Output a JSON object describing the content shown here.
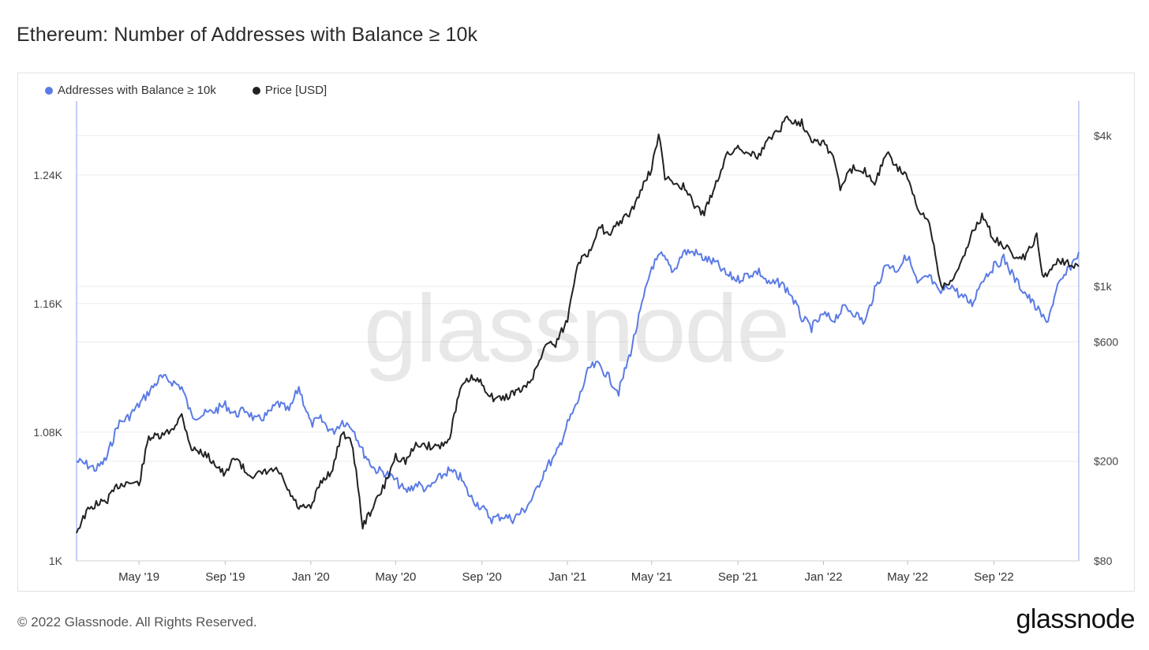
{
  "title": "Ethereum: Number of Addresses with Balance ≥ 10k",
  "footer": "© 2022 Glassnode. All Rights Reserved.",
  "brand": "glassnode",
  "watermark": "glassnode",
  "colors": {
    "addresses": "#5b7be5",
    "price": "#222222",
    "grid": "#ececec"
  },
  "chart_data": {
    "type": "line",
    "title": "Ethereum: Number of Addresses with Balance ≥ 10k",
    "legend_position": "top-left",
    "grid": true,
    "x_ticks": [
      "May '19",
      "Sep '19",
      "Jan '20",
      "May '20",
      "Sep '20",
      "Jan '21",
      "May '21",
      "Sep '21",
      "Jan '22",
      "May '22",
      "Sep '22"
    ],
    "x_range": [
      "2019-02-01",
      "2022-12-31"
    ],
    "y_left": {
      "ticks": [
        "1K",
        "1.08K",
        "1.16K",
        "1.24K"
      ],
      "tick_values": [
        1000,
        1080,
        1160,
        1240
      ],
      "range": [
        1000,
        1286
      ]
    },
    "y_right": {
      "scale": "log",
      "ticks": [
        "$80",
        "$200",
        "$600",
        "$1k",
        "$4k"
      ],
      "tick_values": [
        80,
        200,
        600,
        1000,
        4000
      ],
      "range": [
        80,
        5500
      ]
    },
    "series": [
      {
        "name": "Addresses with Balance ≥ 10k",
        "axis": "left",
        "points": [
          [
            "2019-02-01",
            1062
          ],
          [
            "2019-02-15",
            1060
          ],
          [
            "2019-03-01",
            1057
          ],
          [
            "2019-03-15",
            1063
          ],
          [
            "2019-04-01",
            1085
          ],
          [
            "2019-04-15",
            1089
          ],
          [
            "2019-05-01",
            1097
          ],
          [
            "2019-05-15",
            1105
          ],
          [
            "2019-06-01",
            1114
          ],
          [
            "2019-06-15",
            1112
          ],
          [
            "2019-07-01",
            1108
          ],
          [
            "2019-07-15",
            1090
          ],
          [
            "2019-08-01",
            1091
          ],
          [
            "2019-08-15",
            1093
          ],
          [
            "2019-09-01",
            1097
          ],
          [
            "2019-09-15",
            1091
          ],
          [
            "2019-10-01",
            1094
          ],
          [
            "2019-10-15",
            1087
          ],
          [
            "2019-11-01",
            1091
          ],
          [
            "2019-11-15",
            1098
          ],
          [
            "2019-12-01",
            1093
          ],
          [
            "2019-12-15",
            1108
          ],
          [
            "2020-01-01",
            1085
          ],
          [
            "2020-01-15",
            1088
          ],
          [
            "2020-02-01",
            1080
          ],
          [
            "2020-02-15",
            1087
          ],
          [
            "2020-03-01",
            1083
          ],
          [
            "2020-03-15",
            1068
          ],
          [
            "2020-04-01",
            1057
          ],
          [
            "2020-04-15",
            1055
          ],
          [
            "2020-05-01",
            1050
          ],
          [
            "2020-05-15",
            1043
          ],
          [
            "2020-06-01",
            1048
          ],
          [
            "2020-06-15",
            1044
          ],
          [
            "2020-07-01",
            1051
          ],
          [
            "2020-07-15",
            1056
          ],
          [
            "2020-08-01",
            1052
          ],
          [
            "2020-08-15",
            1040
          ],
          [
            "2020-09-01",
            1033
          ],
          [
            "2020-09-15",
            1026
          ],
          [
            "2020-10-01",
            1028
          ],
          [
            "2020-10-15",
            1026
          ],
          [
            "2020-11-01",
            1032
          ],
          [
            "2020-11-15",
            1041
          ],
          [
            "2020-12-01",
            1058
          ],
          [
            "2020-12-15",
            1065
          ],
          [
            "2021-01-01",
            1085
          ],
          [
            "2021-01-15",
            1098
          ],
          [
            "2021-02-01",
            1120
          ],
          [
            "2021-02-15",
            1122
          ],
          [
            "2021-03-01",
            1114
          ],
          [
            "2021-03-15",
            1105
          ],
          [
            "2021-04-01",
            1130
          ],
          [
            "2021-04-15",
            1155
          ],
          [
            "2021-05-01",
            1183
          ],
          [
            "2021-05-15",
            1190
          ],
          [
            "2021-06-01",
            1180
          ],
          [
            "2021-06-15",
            1192
          ],
          [
            "2021-07-01",
            1192
          ],
          [
            "2021-07-15",
            1188
          ],
          [
            "2021-08-01",
            1185
          ],
          [
            "2021-08-15",
            1178
          ],
          [
            "2021-09-01",
            1175
          ],
          [
            "2021-09-15",
            1178
          ],
          [
            "2021-10-01",
            1180
          ],
          [
            "2021-10-15",
            1172
          ],
          [
            "2021-11-01",
            1173
          ],
          [
            "2021-11-15",
            1166
          ],
          [
            "2021-12-01",
            1151
          ],
          [
            "2021-12-15",
            1145
          ],
          [
            "2022-01-01",
            1153
          ],
          [
            "2022-01-15",
            1150
          ],
          [
            "2022-02-01",
            1158
          ],
          [
            "2022-02-15",
            1154
          ],
          [
            "2022-03-01",
            1148
          ],
          [
            "2022-03-15",
            1168
          ],
          [
            "2022-04-01",
            1185
          ],
          [
            "2022-04-15",
            1181
          ],
          [
            "2022-05-01",
            1190
          ],
          [
            "2022-05-15",
            1172
          ],
          [
            "2022-06-01",
            1177
          ],
          [
            "2022-06-15",
            1166
          ],
          [
            "2022-07-01",
            1172
          ],
          [
            "2022-07-15",
            1165
          ],
          [
            "2022-08-01",
            1160
          ],
          [
            "2022-08-15",
            1175
          ],
          [
            "2022-09-01",
            1183
          ],
          [
            "2022-09-15",
            1188
          ],
          [
            "2022-10-01",
            1175
          ],
          [
            "2022-10-15",
            1167
          ],
          [
            "2022-11-01",
            1157
          ],
          [
            "2022-11-15",
            1148
          ],
          [
            "2022-12-01",
            1170
          ],
          [
            "2022-12-15",
            1180
          ],
          [
            "2022-12-31",
            1192
          ]
        ]
      },
      {
        "name": "Price [USD]",
        "axis": "right",
        "points": [
          [
            "2019-02-01",
            105
          ],
          [
            "2019-02-15",
            125
          ],
          [
            "2019-03-01",
            135
          ],
          [
            "2019-03-15",
            138
          ],
          [
            "2019-04-01",
            160
          ],
          [
            "2019-04-15",
            165
          ],
          [
            "2019-05-01",
            162
          ],
          [
            "2019-05-15",
            250
          ],
          [
            "2019-06-01",
            250
          ],
          [
            "2019-06-15",
            265
          ],
          [
            "2019-07-01",
            305
          ],
          [
            "2019-07-15",
            225
          ],
          [
            "2019-08-01",
            215
          ],
          [
            "2019-08-15",
            200
          ],
          [
            "2019-09-01",
            175
          ],
          [
            "2019-09-15",
            210
          ],
          [
            "2019-10-01",
            180
          ],
          [
            "2019-10-15",
            175
          ],
          [
            "2019-11-01",
            182
          ],
          [
            "2019-11-15",
            184
          ],
          [
            "2019-12-01",
            150
          ],
          [
            "2019-12-15",
            130
          ],
          [
            "2020-01-01",
            130
          ],
          [
            "2020-01-15",
            165
          ],
          [
            "2020-02-01",
            185
          ],
          [
            "2020-02-15",
            265
          ],
          [
            "2020-03-01",
            230
          ],
          [
            "2020-03-15",
            110
          ],
          [
            "2020-04-01",
            135
          ],
          [
            "2020-04-15",
            160
          ],
          [
            "2020-05-01",
            210
          ],
          [
            "2020-05-15",
            200
          ],
          [
            "2020-06-01",
            235
          ],
          [
            "2020-06-15",
            230
          ],
          [
            "2020-07-01",
            230
          ],
          [
            "2020-07-15",
            240
          ],
          [
            "2020-08-01",
            385
          ],
          [
            "2020-08-15",
            430
          ],
          [
            "2020-09-01",
            410
          ],
          [
            "2020-09-15",
            360
          ],
          [
            "2020-10-01",
            355
          ],
          [
            "2020-10-15",
            375
          ],
          [
            "2020-11-01",
            390
          ],
          [
            "2020-11-15",
            450
          ],
          [
            "2020-12-01",
            590
          ],
          [
            "2020-12-15",
            590
          ],
          [
            "2021-01-01",
            735
          ],
          [
            "2021-01-15",
            1250
          ],
          [
            "2021-02-01",
            1350
          ],
          [
            "2021-02-15",
            1780
          ],
          [
            "2021-03-01",
            1570
          ],
          [
            "2021-03-15",
            1800
          ],
          [
            "2021-04-01",
            1950
          ],
          [
            "2021-04-15",
            2400
          ],
          [
            "2021-05-01",
            2950
          ],
          [
            "2021-05-11",
            4100
          ],
          [
            "2021-05-20",
            2700
          ],
          [
            "2021-06-01",
            2600
          ],
          [
            "2021-06-15",
            2500
          ],
          [
            "2021-07-01",
            2100
          ],
          [
            "2021-07-15",
            1950
          ],
          [
            "2021-08-01",
            2600
          ],
          [
            "2021-08-15",
            3300
          ],
          [
            "2021-09-01",
            3600
          ],
          [
            "2021-09-15",
            3450
          ],
          [
            "2021-10-01",
            3300
          ],
          [
            "2021-10-15",
            3900
          ],
          [
            "2021-11-01",
            4300
          ],
          [
            "2021-11-10",
            4750
          ],
          [
            "2021-11-15",
            4600
          ],
          [
            "2021-12-01",
            4500
          ],
          [
            "2021-12-15",
            3900
          ],
          [
            "2022-01-01",
            3750
          ],
          [
            "2022-01-15",
            3300
          ],
          [
            "2022-01-25",
            2450
          ],
          [
            "2022-02-01",
            2700
          ],
          [
            "2022-02-15",
            3000
          ],
          [
            "2022-03-01",
            2900
          ],
          [
            "2022-03-15",
            2600
          ],
          [
            "2022-04-01",
            3400
          ],
          [
            "2022-04-15",
            3000
          ],
          [
            "2022-05-01",
            2750
          ],
          [
            "2022-05-15",
            2000
          ],
          [
            "2022-06-01",
            1800
          ],
          [
            "2022-06-18",
            1000
          ],
          [
            "2022-07-01",
            1050
          ],
          [
            "2022-07-15",
            1200
          ],
          [
            "2022-08-01",
            1650
          ],
          [
            "2022-08-15",
            1900
          ],
          [
            "2022-09-01",
            1550
          ],
          [
            "2022-09-15",
            1450
          ],
          [
            "2022-10-01",
            1320
          ],
          [
            "2022-10-15",
            1300
          ],
          [
            "2022-11-01",
            1580
          ],
          [
            "2022-11-09",
            1100
          ],
          [
            "2022-11-20",
            1150
          ],
          [
            "2022-12-01",
            1280
          ],
          [
            "2022-12-15",
            1250
          ],
          [
            "2022-12-31",
            1200
          ]
        ]
      }
    ]
  }
}
